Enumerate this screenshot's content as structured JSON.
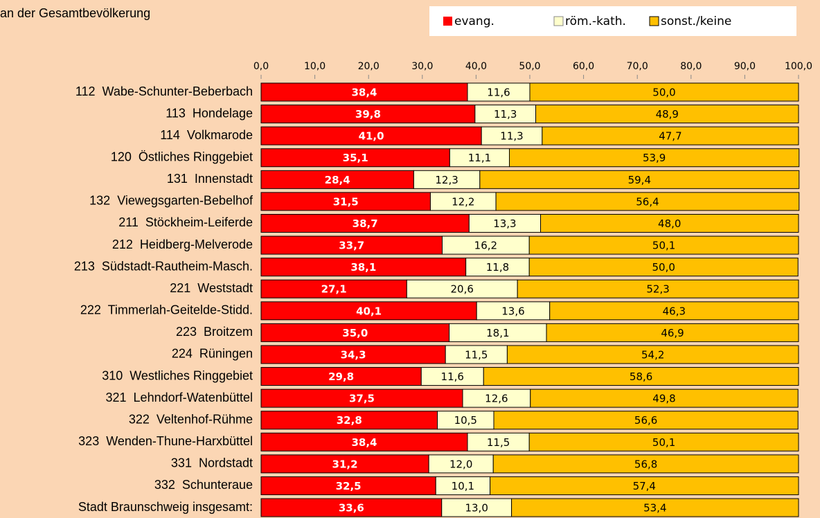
{
  "chart_data": {
    "type": "stacked_bar",
    "title": "an der Gesamtbevölkerung",
    "categories": [
      "112  Wabe-Schunter-Beberbach",
      "113  Hondelage",
      "114  Volkmarode",
      "120  Östliches Ringgebiet",
      "131  Innenstadt",
      "132  Viewegsgarten-Bebelhof",
      "211  Stöckheim-Leiferde",
      "212  Heidberg-Melverode",
      "213  Südstadt-Rautheim-Masch.",
      "221  Weststadt",
      "222  Timmerlah-Geitelde-Stidd.",
      "223  Broitzem",
      "224  Rüningen",
      "310  Westliches Ringgebiet",
      "321  Lehndorf-Watenbüttel",
      "322  Veltenhof-Rühme",
      "323  Wenden-Thune-Harxbüttel",
      "331  Nordstadt",
      "332  Schunteraue",
      "Stadt Braunschweig insgesamt:"
    ],
    "series": [
      {
        "name": "evang.",
        "color": "#ff0000",
        "values": [
          38.4,
          39.8,
          41.0,
          35.1,
          28.4,
          31.5,
          38.7,
          33.7,
          38.1,
          27.1,
          40.1,
          35.0,
          34.3,
          29.8,
          37.5,
          32.8,
          38.4,
          31.2,
          32.5,
          33.6
        ],
        "value_labels": [
          "38,4",
          "39,8",
          "41,0",
          "35,1",
          "28,4",
          "31,5",
          "38,7",
          "33,7",
          "38,1",
          "27,1",
          "40,1",
          "35,0",
          "34,3",
          "29,8",
          "37,5",
          "32,8",
          "38,4",
          "31,2",
          "32,5",
          "33,6"
        ]
      },
      {
        "name": "röm.-kath.",
        "color": "#ffffcc",
        "values": [
          11.6,
          11.3,
          11.3,
          11.1,
          12.3,
          12.2,
          13.3,
          16.2,
          11.8,
          20.6,
          13.6,
          18.1,
          11.5,
          11.6,
          12.6,
          10.5,
          11.5,
          12.0,
          10.1,
          13.0
        ],
        "value_labels": [
          "11,6",
          "11,3",
          "11,3",
          "11,1",
          "12,3",
          "12,2",
          "13,3",
          "16,2",
          "11,8",
          "20,6",
          "13,6",
          "18,1",
          "11,5",
          "11,6",
          "12,6",
          "10,5",
          "11,5",
          "12,0",
          "10,1",
          "13,0"
        ]
      },
      {
        "name": "sonst./keine",
        "color": "#ffc000",
        "values": [
          50.0,
          48.9,
          47.7,
          53.9,
          59.4,
          56.4,
          48.0,
          50.1,
          50.0,
          52.3,
          46.3,
          46.9,
          54.2,
          58.6,
          49.8,
          56.6,
          50.1,
          56.8,
          57.4,
          53.4
        ],
        "value_labels": [
          "50,0",
          "48,9",
          "47,7",
          "53,9",
          "59,4",
          "56,4",
          "48,0",
          "50,1",
          "50,0",
          "52,3",
          "46,3",
          "46,9",
          "54,2",
          "58,6",
          "49,8",
          "56,6",
          "50,1",
          "56,8",
          "57,4",
          "53,4"
        ]
      }
    ],
    "xlim": [
      0,
      100
    ],
    "xticks": [
      {
        "value": 0,
        "label": "0,0"
      },
      {
        "value": 10,
        "label": "10,0"
      },
      {
        "value": 20,
        "label": "20,0"
      },
      {
        "value": 30,
        "label": "30,0"
      },
      {
        "value": 40,
        "label": "40,0"
      },
      {
        "value": 50,
        "label": "50,0"
      },
      {
        "value": 60,
        "label": "60,0"
      },
      {
        "value": 70,
        "label": "70,0"
      },
      {
        "value": 80,
        "label": "80,0"
      },
      {
        "value": 90,
        "label": "90,0"
      },
      {
        "value": 100,
        "label": "100,0"
      }
    ],
    "legend": "top-right"
  }
}
